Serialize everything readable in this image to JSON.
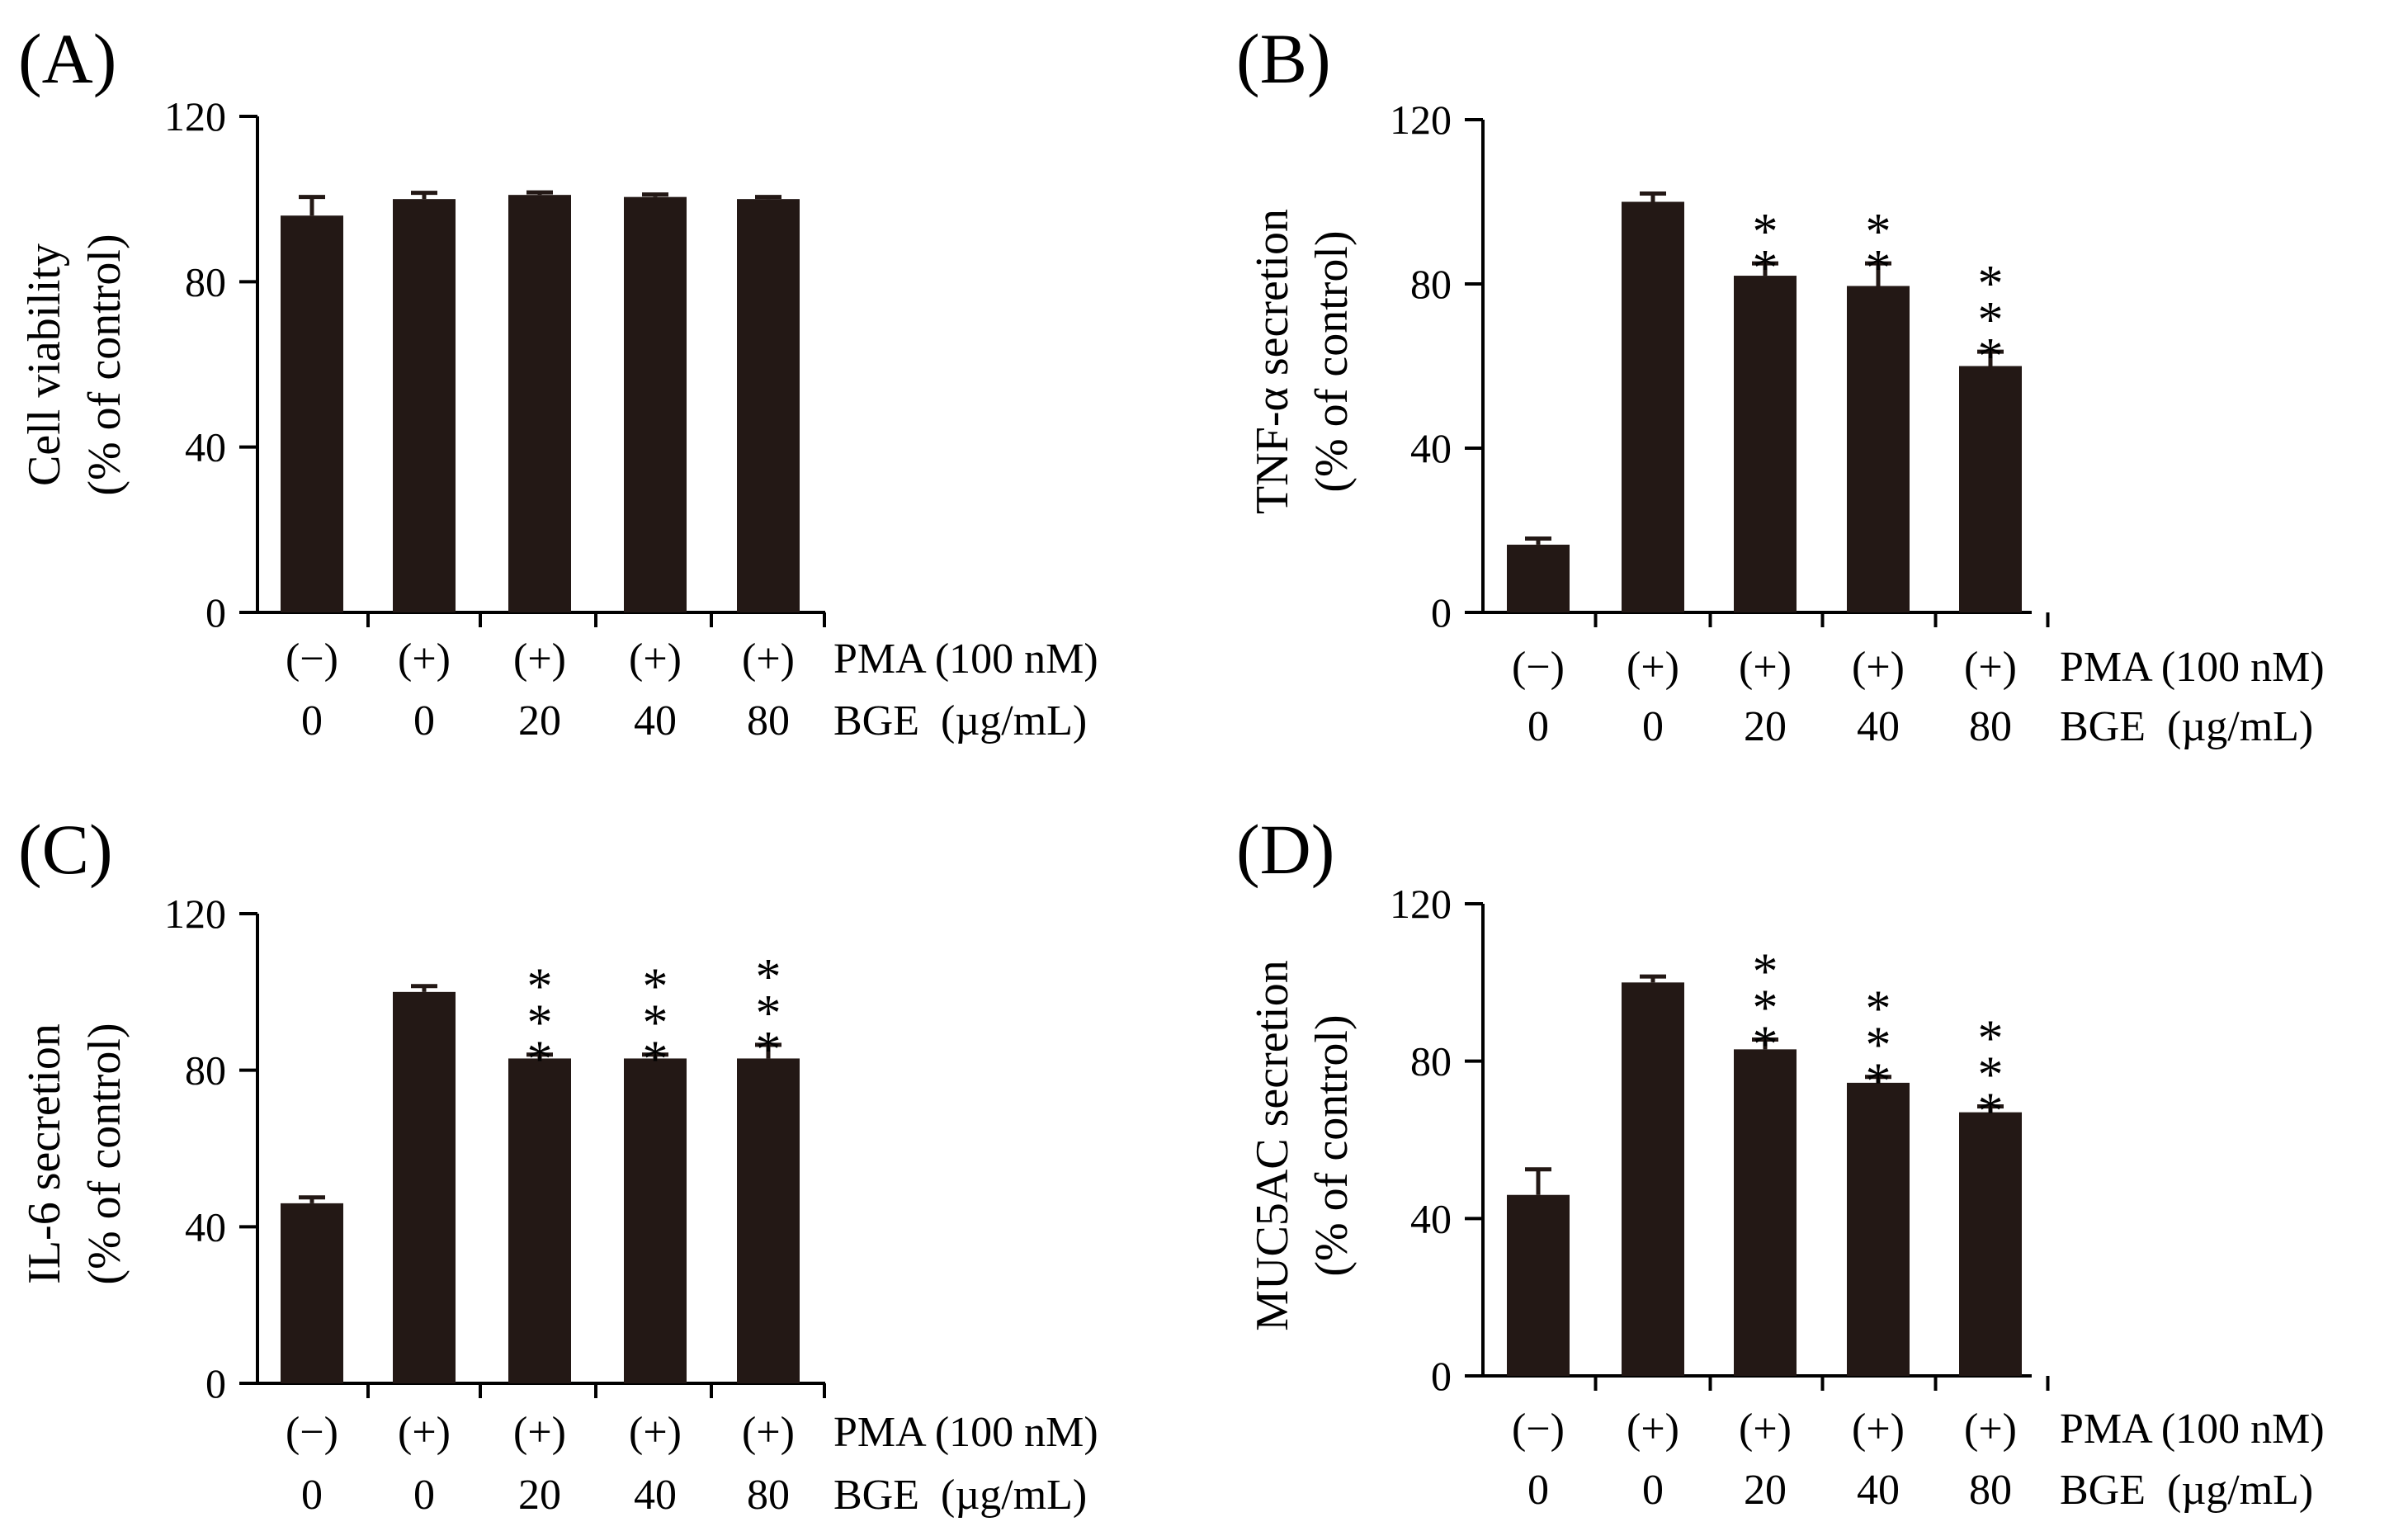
{
  "figure": {
    "x_rows": [
      {
        "labels": [
          "(−)",
          "(+)",
          "(+)",
          "(+)",
          "(+)"
        ],
        "suffix": "PMA (100 nM)"
      },
      {
        "labels": [
          "0",
          "0",
          "20",
          "40",
          "80"
        ],
        "suffix": "BGE  (µg/mL)"
      }
    ]
  },
  "chart_data": [
    {
      "panel": "(A)",
      "type": "bar",
      "ylabel_line1": "Cell viability",
      "ylabel_line2": "(% of control)",
      "ylim": [
        0,
        120
      ],
      "yticks": [
        0,
        40,
        80,
        120
      ],
      "categories": [
        "(−) 0",
        "(+) 0",
        "(+) 20",
        "(+) 40",
        "(+) 80"
      ],
      "values": [
        96,
        100,
        101,
        100.5,
        100
      ],
      "errors": [
        4.5,
        1.5,
        0.6,
        0.6,
        0.5
      ],
      "significance": [
        "",
        "",
        "",
        "",
        ""
      ]
    },
    {
      "panel": "(B)",
      "type": "bar",
      "ylabel_line1": "TNF-α secretion",
      "ylabel_line2": "(% of control)",
      "ylim": [
        0,
        120
      ],
      "yticks": [
        0,
        40,
        80,
        120
      ],
      "categories": [
        "(−) 0",
        "(+) 0",
        "(+) 20",
        "(+) 40",
        "(+) 80"
      ],
      "values": [
        16.5,
        100,
        82,
        79.5,
        60
      ],
      "errors": [
        1.5,
        2,
        3,
        5.5,
        3.5
      ],
      "significance": [
        "",
        "",
        "**",
        "**",
        "***"
      ]
    },
    {
      "panel": "(C)",
      "type": "bar",
      "ylabel_line1": "IL-6 secretion",
      "ylabel_line2": "(% of control)",
      "ylim": [
        0,
        120
      ],
      "yticks": [
        0,
        40,
        80,
        120
      ],
      "categories": [
        "(−) 0",
        "(+) 0",
        "(+) 20",
        "(+) 40",
        "(+) 80"
      ],
      "values": [
        46,
        100,
        83,
        83,
        83
      ],
      "errors": [
        1.5,
        1.5,
        1,
        1,
        3.5
      ],
      "significance": [
        "",
        "",
        "***",
        "***",
        "***"
      ]
    },
    {
      "panel": "(D)",
      "type": "bar",
      "ylabel_line1": "MUC5AC secretion",
      "ylabel_line2": "(% of control)",
      "ylim": [
        0,
        120
      ],
      "yticks": [
        0,
        40,
        80,
        120
      ],
      "categories": [
        "(−) 0",
        "(+) 0",
        "(+) 20",
        "(+) 40",
        "(+) 80"
      ],
      "values": [
        46,
        100,
        83,
        74.5,
        67
      ],
      "errors": [
        6.5,
        1.5,
        2.5,
        1.5,
        1.5
      ],
      "significance": [
        "",
        "",
        "***",
        "***",
        "***"
      ]
    }
  ]
}
